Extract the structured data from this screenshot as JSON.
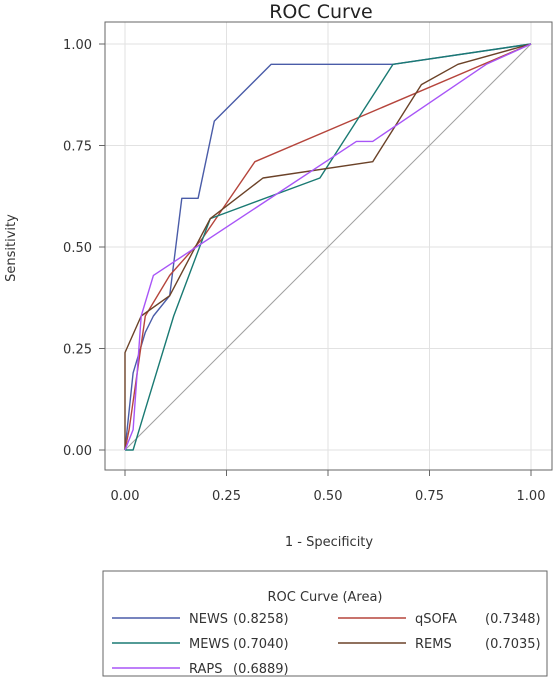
{
  "chart_data": {
    "type": "line",
    "title": "ROC Curve",
    "xlabel": "1 - Specificity",
    "ylabel": "Sensitivity",
    "xlim": [
      0,
      1
    ],
    "ylim": [
      0,
      1
    ],
    "xticks": [
      "0.00",
      "0.25",
      "0.50",
      "0.75",
      "1.00"
    ],
    "yticks": [
      "0.00",
      "0.25",
      "0.50",
      "0.75",
      "1.00"
    ],
    "grid": true,
    "reference_line": {
      "x": [
        0,
        1
      ],
      "y": [
        0,
        1
      ],
      "color": "#a0a0a0"
    },
    "legend": {
      "title": "ROC Curve (Area)",
      "placement": "bottom"
    },
    "series": [
      {
        "name": "NEWS",
        "area": "(0.8258)",
        "color": "#4a5ca8",
        "x": [
          0,
          0.02,
          0.05,
          0.07,
          0.11,
          0.14,
          0.16,
          0.18,
          0.22,
          0.36,
          0.66,
          1.0
        ],
        "y": [
          0,
          0.19,
          0.29,
          0.33,
          0.38,
          0.62,
          0.62,
          0.62,
          0.81,
          0.95,
          0.95,
          1.0
        ]
      },
      {
        "name": "qSOFA",
        "area": "(0.7348)",
        "color": "#b5453c",
        "x": [
          0,
          0.01,
          0.05,
          0.11,
          0.19,
          0.32,
          1.0
        ],
        "y": [
          0,
          0.05,
          0.33,
          0.43,
          0.52,
          0.71,
          1.0
        ]
      },
      {
        "name": "MEWS",
        "area": "(0.7040)",
        "color": "#1a7a73",
        "x": [
          0,
          0.02,
          0.05,
          0.12,
          0.21,
          0.48,
          0.66,
          1.0
        ],
        "y": [
          0,
          0,
          0.1,
          0.33,
          0.57,
          0.67,
          0.95,
          1.0
        ]
      },
      {
        "name": "REMS",
        "area": "(0.7035)",
        "color": "#6b4228",
        "x": [
          0,
          0,
          0.04,
          0.11,
          0.21,
          0.34,
          0.61,
          0.73,
          0.82,
          1.0
        ],
        "y": [
          0,
          0.24,
          0.33,
          0.38,
          0.57,
          0.67,
          0.71,
          0.9,
          0.95,
          1.0
        ]
      },
      {
        "name": "RAPS",
        "area": "(0.6889)",
        "color": "#a855f7",
        "x": [
          0,
          0.02,
          0.04,
          0.07,
          0.57,
          0.61,
          0.89,
          1.0
        ],
        "y": [
          0,
          0.05,
          0.33,
          0.43,
          0.76,
          0.76,
          0.95,
          1.0
        ]
      }
    ]
  }
}
